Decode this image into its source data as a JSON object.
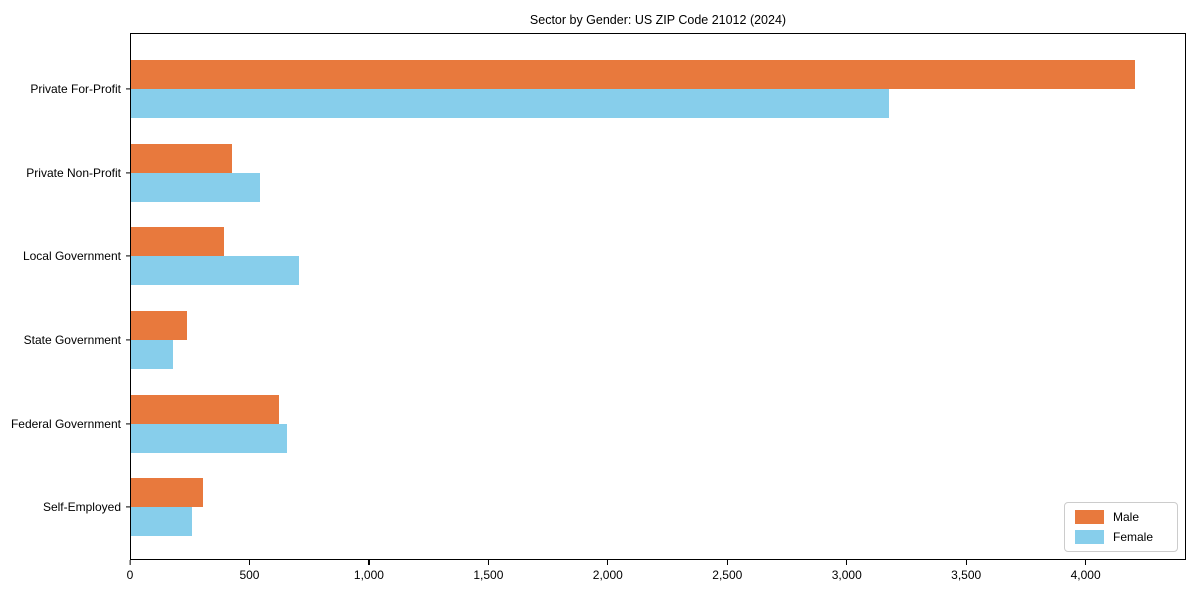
{
  "chart_data": {
    "type": "bar",
    "orientation": "horizontal",
    "title": "Sector by Gender: US ZIP Code 21012 (2024)",
    "categories": [
      "Private For-Profit",
      "Private Non-Profit",
      "Local Government",
      "State Government",
      "Federal Government",
      "Self-Employed"
    ],
    "series": [
      {
        "name": "Male",
        "color": "#e8793d",
        "values": [
          4210,
          425,
          390,
          235,
          620,
          300
        ]
      },
      {
        "name": "Female",
        "color": "#87ceeb",
        "values": [
          3180,
          540,
          705,
          175,
          655,
          255
        ]
      }
    ],
    "xlabel": "",
    "ylabel": "",
    "xlim": [
      0,
      4420
    ],
    "x_ticks": [
      0,
      500,
      1000,
      1500,
      2000,
      2500,
      3000,
      3500,
      4000
    ],
    "x_tick_labels": [
      "0",
      "500",
      "1,000",
      "1,500",
      "2,000",
      "2,500",
      "3,000",
      "3,500",
      "4,000"
    ],
    "grid": false,
    "legend_position": "lower-right"
  },
  "legend": {
    "items": [
      {
        "label": "Male",
        "color": "#e8793d"
      },
      {
        "label": "Female",
        "color": "#87ceeb"
      }
    ]
  }
}
